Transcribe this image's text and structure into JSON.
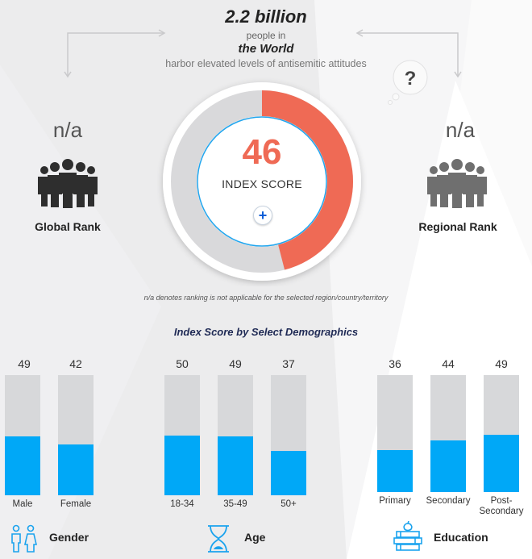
{
  "header": {
    "headline": "2.2 billion",
    "line1": "people in",
    "line2": "the World",
    "line3": "harbor elevated levels of antisemitic attitudes"
  },
  "global_rank": {
    "value": "n/a",
    "label": "Global Rank",
    "icon": "people-group-icon"
  },
  "regional_rank": {
    "value": "n/a",
    "label": "Regional Rank",
    "icon": "people-group-icon"
  },
  "question_icon": {
    "glyph": "?"
  },
  "index_score": {
    "value": "46",
    "label": "INDEX SCORE",
    "fraction": 0.46,
    "expand_glyph": "+"
  },
  "note": "n/a denotes ranking is not applicable for the selected region/country/territory",
  "demographics_title": "Index Score by Select Demographics",
  "colors": {
    "accent": "#ef6a55",
    "bar_fill": "#00a8f7",
    "bar_track": "#d7d8da",
    "ring_track": "#d9d9db"
  },
  "groups": [
    {
      "name": "Gender",
      "icon": "male-female-icon",
      "bars": [
        {
          "category": "Male",
          "value": "49",
          "score": 49
        },
        {
          "category": "Female",
          "value": "42",
          "score": 42
        }
      ]
    },
    {
      "name": "Age",
      "icon": "hourglass-icon",
      "bars": [
        {
          "category": "18-34",
          "value": "50",
          "score": 50
        },
        {
          "category": "35-49",
          "value": "49",
          "score": 49
        },
        {
          "category": "50+",
          "value": "37",
          "score": 37
        }
      ]
    },
    {
      "name": "Education",
      "icon": "graduation-books-icon",
      "bars": [
        {
          "category": "Primary",
          "value": "36",
          "score": 36
        },
        {
          "category": "Secondary",
          "value": "44",
          "score": 44
        },
        {
          "category": "Post-\nSecondary",
          "value": "49",
          "score": 49
        }
      ]
    }
  ]
}
